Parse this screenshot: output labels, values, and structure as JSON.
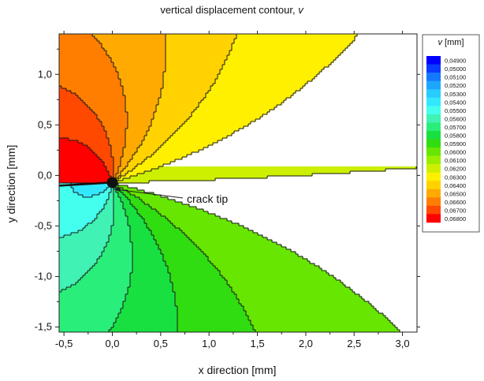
{
  "chart_data": {
    "type": "heatmap",
    "title": "vertical displacement contour, ",
    "title_symbol": "v",
    "xlabel": "x direction [mm]",
    "ylabel": "y direction [mm]",
    "xlim": [
      -0.55,
      3.15
    ],
    "ylim": [
      -1.55,
      1.4
    ],
    "x_ticks": [
      -0.5,
      0.0,
      0.5,
      1.0,
      1.5,
      2.0,
      2.5,
      3.0
    ],
    "x_tick_labels": [
      "-0,5",
      "0,0",
      "0,5",
      "1,0",
      "1,5",
      "2,0",
      "2,5",
      "3,0"
    ],
    "y_ticks": [
      -1.5,
      -1.0,
      -0.5,
      0.0,
      0.5,
      1.0
    ],
    "y_tick_labels": [
      "-1,5",
      "-1,0",
      "-0,5",
      "0,0",
      "0,5",
      "1,0"
    ],
    "legend": {
      "title_symbol": "v",
      "title_unit": " [mm]",
      "position": "right",
      "levels": [
        "0,04900",
        "0,05000",
        "0,05100",
        "0,05200",
        "0,05300",
        "0,05400",
        "0,05500",
        "0,05600",
        "0,05700",
        "0,05800",
        "0,05900",
        "0,06000",
        "0,06100",
        "0,06200",
        "0,06300",
        "0,06400",
        "0,06500",
        "0,06600",
        "0,06700",
        "0,06800"
      ],
      "colors": [
        "#0000ff",
        "#0a3cff",
        "#1478ff",
        "#1ea6ff",
        "#28ccff",
        "#32e8ff",
        "#44ffee",
        "#40f2b4",
        "#2aee7a",
        "#18e040",
        "#30dd10",
        "#66e600",
        "#99ee00",
        "#ccf000",
        "#fff000",
        "#ffd200",
        "#ffaa00",
        "#ff7e00",
        "#ff4800",
        "#ff0000"
      ]
    },
    "annotation": {
      "text": "crack tip",
      "x": 0.0,
      "y": -0.07
    }
  }
}
